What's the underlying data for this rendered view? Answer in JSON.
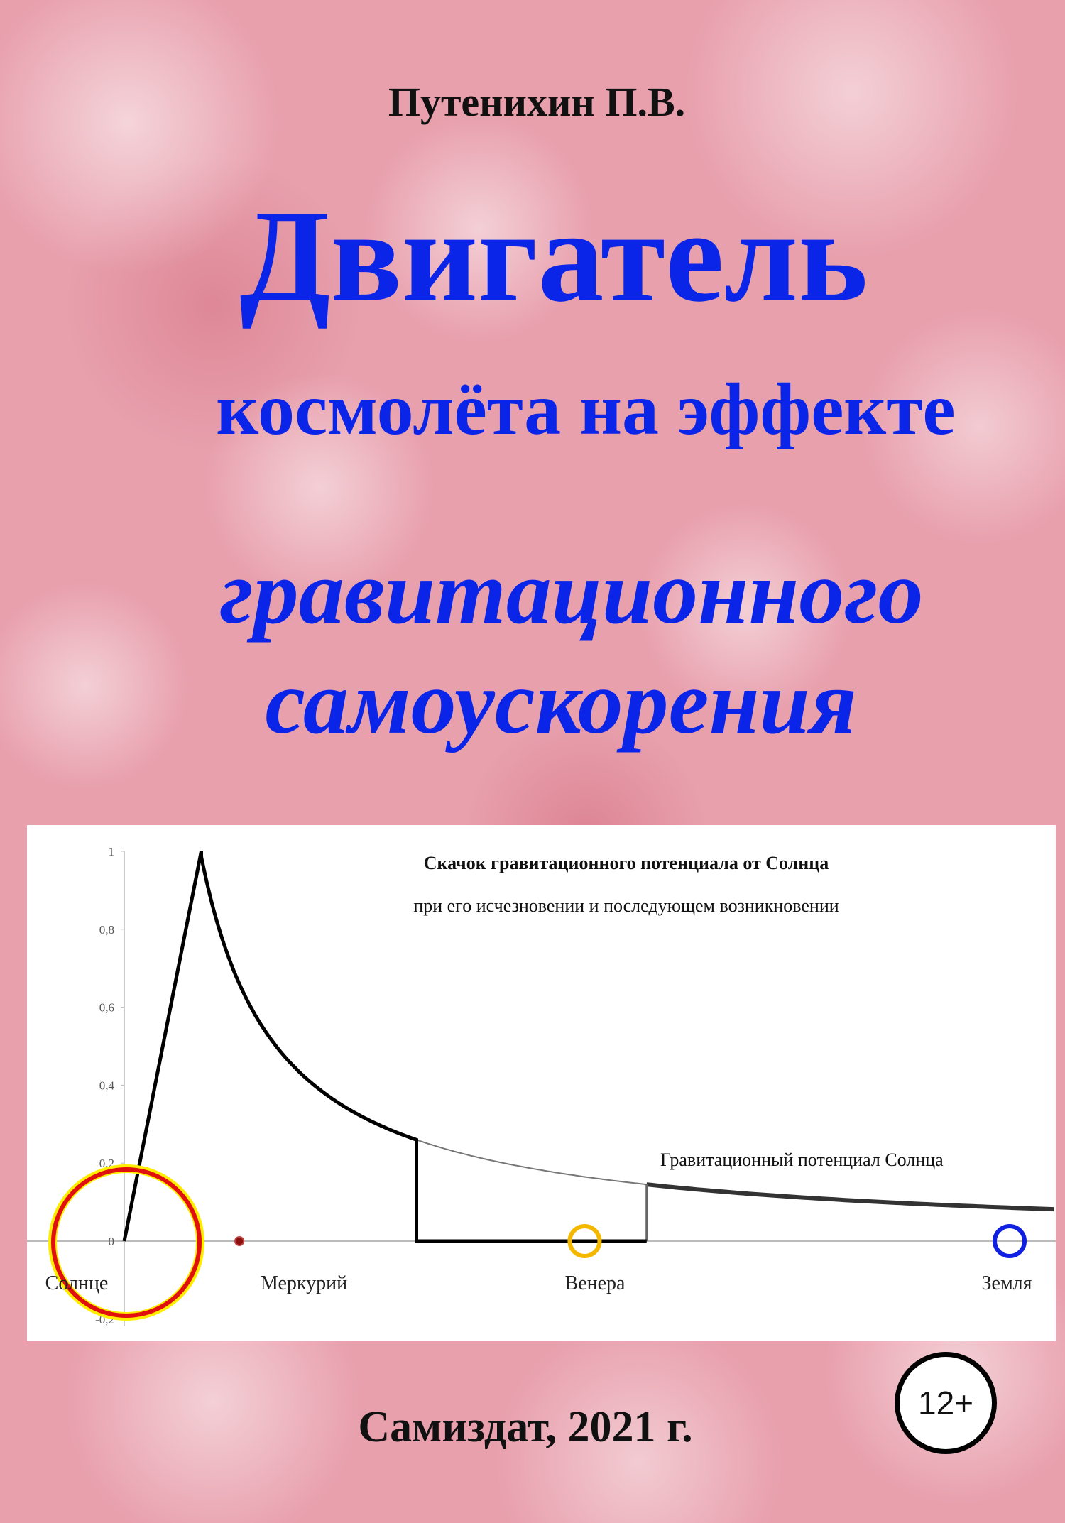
{
  "author": "Путенихин П.В.",
  "title_lines": [
    "Двигатель",
    "космолёта на эффекте",
    "гравитационного",
    "самоускорения"
  ],
  "publisher": "Самиздат, 2021 г.",
  "age_rating": "12+",
  "colors": {
    "title": "#0a24e8",
    "background": "#e8a0ad",
    "sun_outer": "#ffee00",
    "sun_inner": "#e01010",
    "mercury": "#8b1010",
    "venus": "#f5b800",
    "earth": "#1020e0"
  },
  "chart_data": {
    "type": "line",
    "title": "Скачок гравитационного потенциала от Солнца",
    "subtitle": "при его исчезновении и последующем возникновении",
    "curve_label": "Гравитационный потенциал Солнца",
    "ylim": [
      -0.2,
      1
    ],
    "yticks": [
      "-0,2",
      "0",
      "0,2",
      "0,4",
      "0,6",
      "0,8",
      "1"
    ],
    "ytick_values": [
      -0.2,
      0,
      0.2,
      0.4,
      0.6,
      0.8,
      1
    ],
    "potential": {
      "formula": "k/x",
      "k": 0.0858,
      "x_end": 1.05
    },
    "jump": [
      [
        0,
        0
      ],
      [
        0.087,
        1
      ],
      {
        "curve_to": 0.33
      },
      [
        0.33,
        0
      ],
      [
        0.59,
        0
      ],
      {
        "curve_from": 0.59
      }
    ],
    "planets": [
      {
        "name": "Солнце",
        "x": 0
      },
      {
        "name": "Меркурий",
        "x": 0.13
      },
      {
        "name": "Венера",
        "x": 0.52
      },
      {
        "name": "Земля",
        "x": 1
      }
    ]
  }
}
